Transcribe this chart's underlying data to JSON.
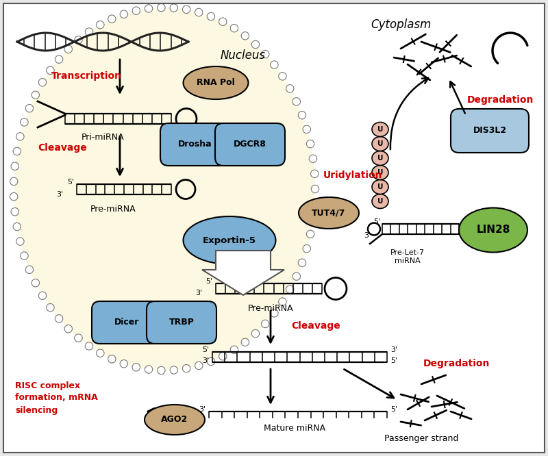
{
  "bg_color": "#e8e8e8",
  "nucleus_bg": "#fdf8e1",
  "cytoplasm_label": "Cytoplasm",
  "nucleus_label": "Nucleus",
  "transcription_label": "Transcription",
  "cleavage_label1": "Cleavage",
  "cleavage_label2": "Cleavage",
  "uridylation_label": "Uridylation",
  "degradation_label1": "Degradation",
  "degradation_label2": "Degradation",
  "risc_label": "RISC complex\nformation, mRNA\nsilencing",
  "rna_pol_label": "RNA Pol",
  "drosha_label": "Drosha",
  "dgcr8_label": "DGCR8",
  "exportin_label": "Exportin-5",
  "tut47_label": "TUT4/7",
  "dis3l2_label": "DIS3L2",
  "lin28_label": "LIN28",
  "dicer_label": "Dicer",
  "trbp_label": "TRBP",
  "ago2_label": "AGO2",
  "pri_mirna_label": "Pri-miRNA",
  "pre_mirna_label1": "Pre-miRNA",
  "pre_mirna_label2": "Pre-miRNA",
  "pre_let7_label": "Pre-Let-7\nmiRNA",
  "mature_mirna_label": "Mature miRNA",
  "passenger_label": "Passenger strand",
  "red_color": "#cc0000",
  "blue_protein_color": "#7bafd4",
  "tan_protein_color": "#c8a87a",
  "green_protein_color": "#7ab648",
  "light_blue_color": "#a8c8e0",
  "salmon_color": "#e8b8a8",
  "dna_color": "#222222",
  "strand_color": "#111111"
}
